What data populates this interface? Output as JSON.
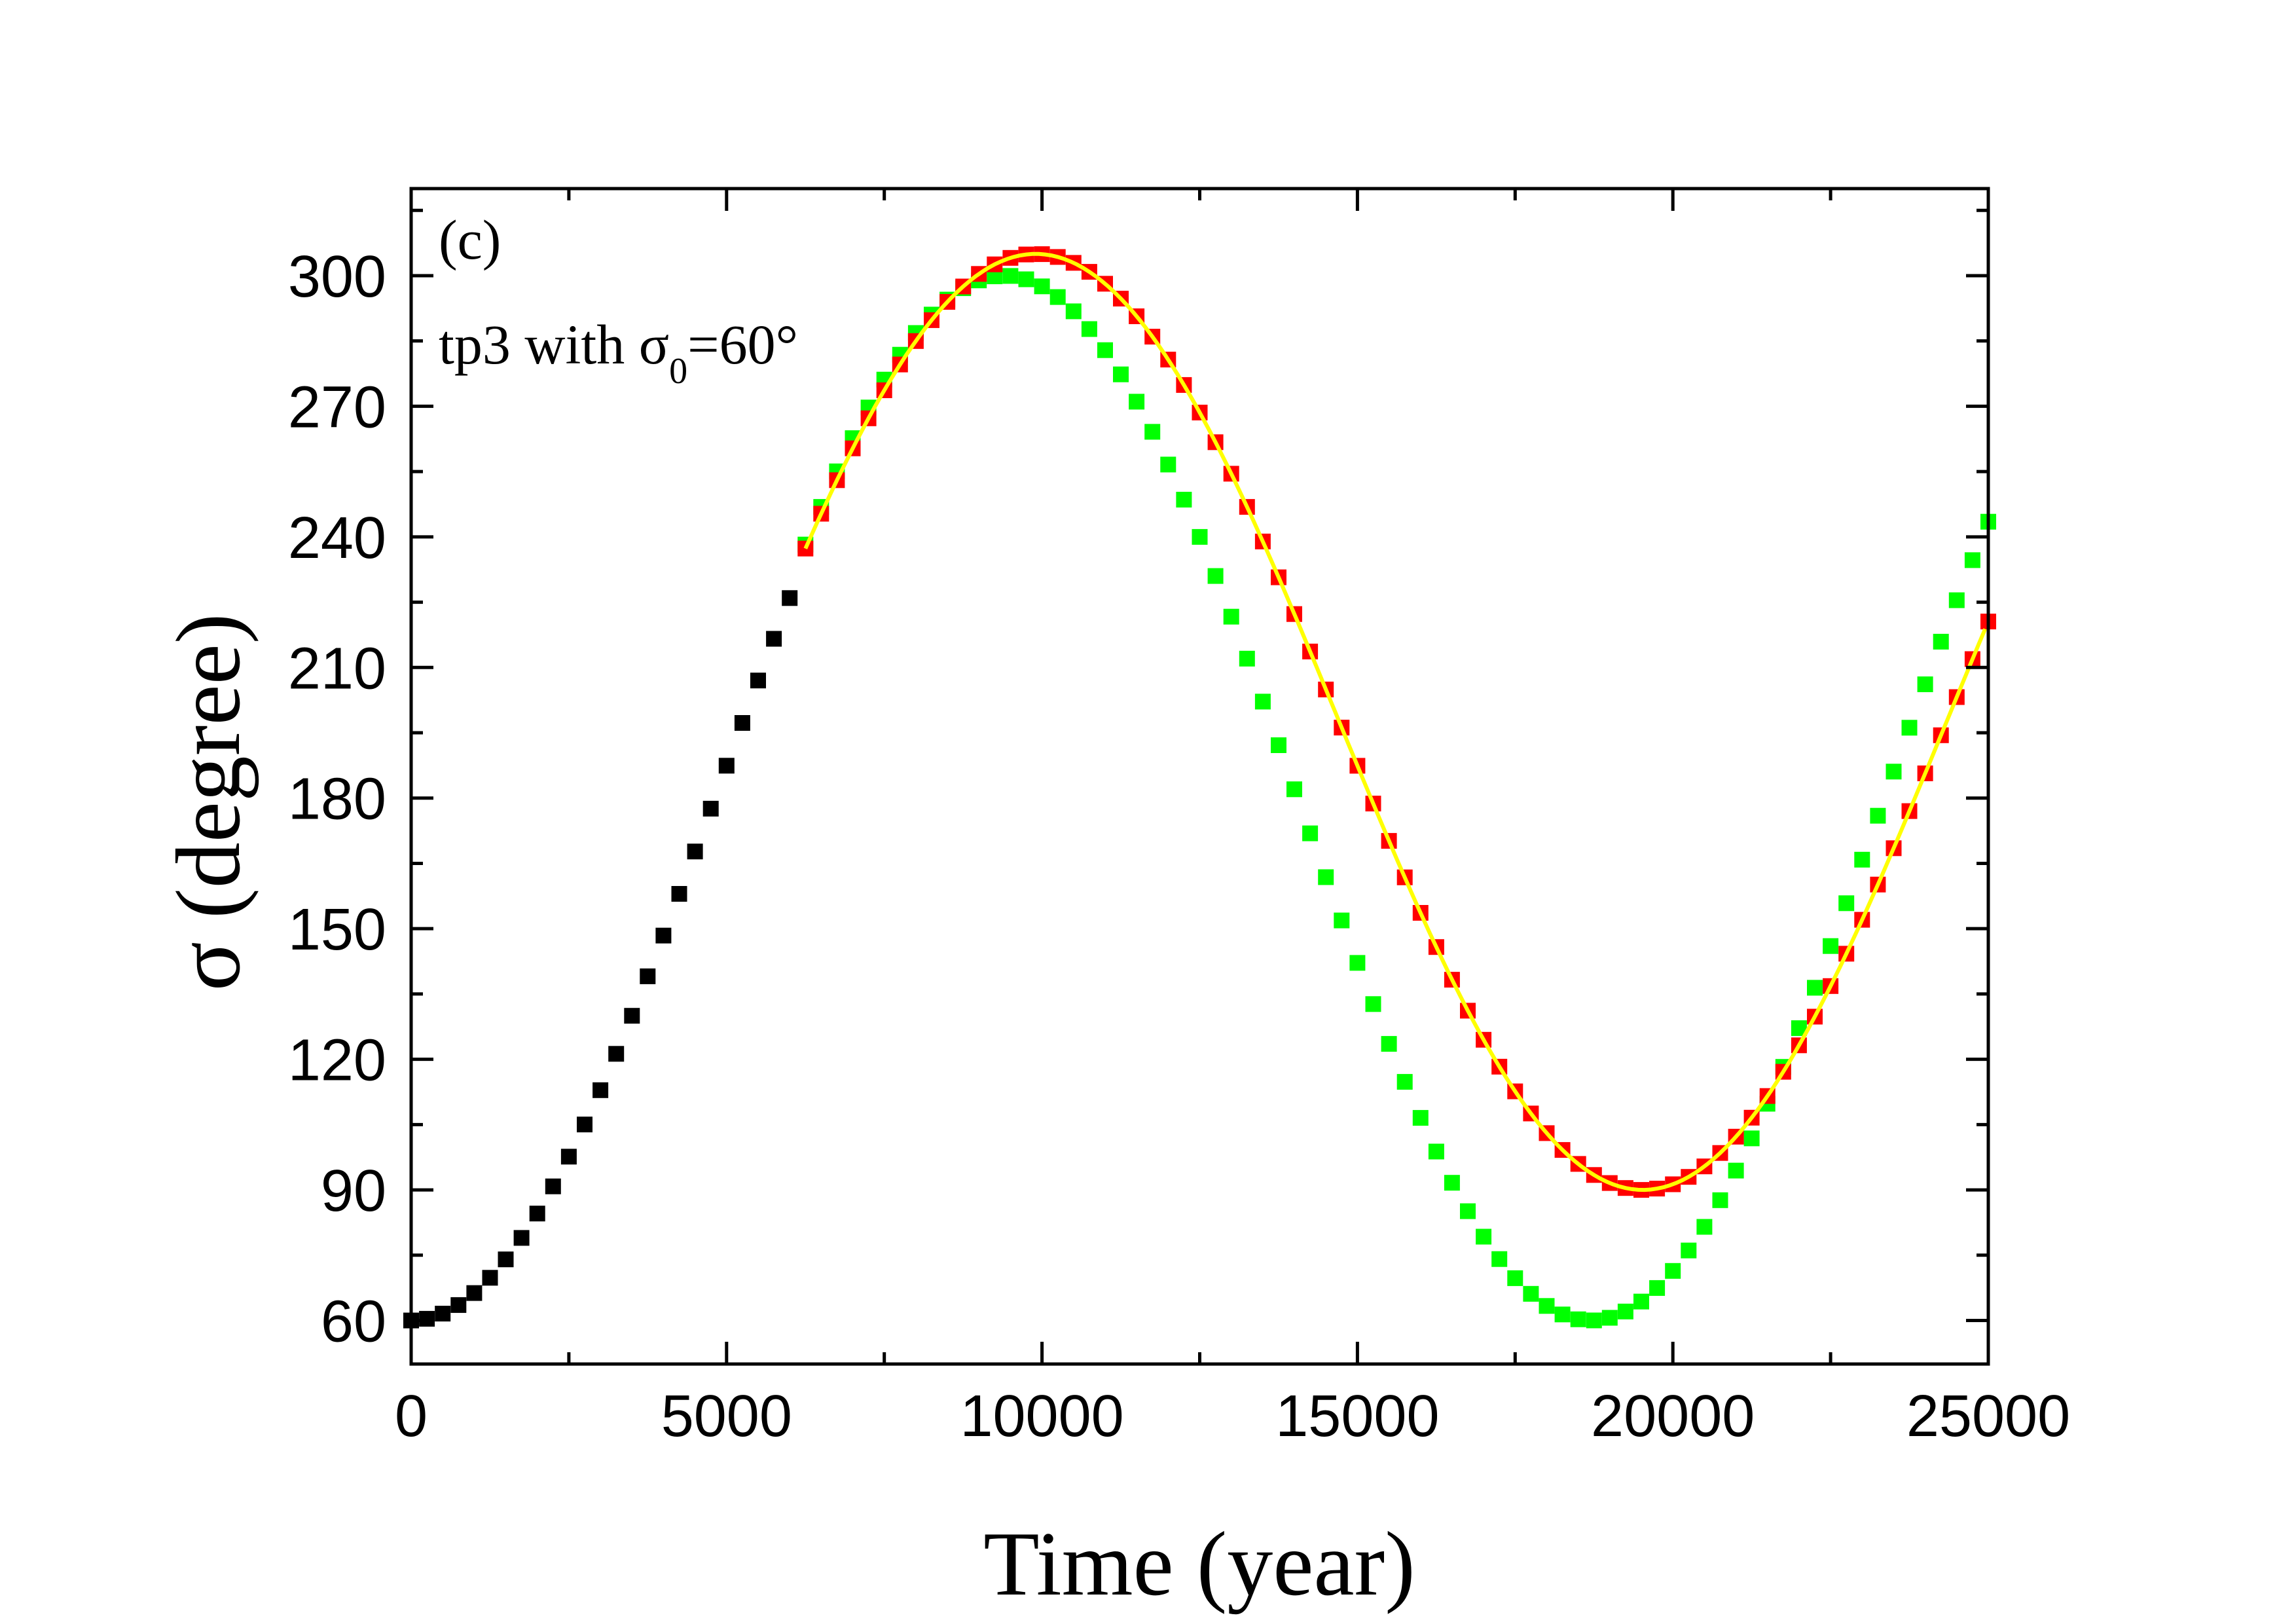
{
  "chart_data": {
    "type": "scatter",
    "xlabel": "Time (year)",
    "ylabel": "σ (degree)",
    "xlim": [
      0,
      25000
    ],
    "ylim": [
      50,
      320
    ],
    "xticks": [
      0,
      5000,
      10000,
      15000,
      20000,
      25000
    ],
    "yticks": [
      60,
      90,
      120,
      150,
      180,
      210,
      240,
      270,
      300
    ],
    "x_minor_step": 2500,
    "y_minor_step": 15,
    "panel_label": "(c)",
    "annotation": {
      "prefix": "tp3 with σ",
      "subscript": "0",
      "suffix": "=60°"
    },
    "colors": {
      "early": "#000000",
      "red": "#ff0000",
      "green": "#00ff00",
      "fit": "#ffff00"
    },
    "series": [
      {
        "name": "early",
        "type": "scatter",
        "color": "#000000",
        "x_start": 0,
        "x_end": 6000,
        "x_step": 250,
        "model": {
          "center": 182.5,
          "amplitude": 122.5,
          "period": 19500,
          "peak_time": 9750
        }
      },
      {
        "name": "red",
        "type": "scatter",
        "color": "#ff0000",
        "x_start": 6250,
        "x_end": 25000,
        "x_step": 250,
        "model": {
          "center": 197.5,
          "amplitude": 107.5,
          "period": 19250,
          "peak_time": 9900
        }
      },
      {
        "name": "green",
        "type": "scatter",
        "color": "#00ff00",
        "x_start": 6250,
        "x_end": 25000,
        "x_step": 250,
        "model": {
          "center": 180,
          "amplitude": 120,
          "period": 18600,
          "peak_time": 9400
        }
      },
      {
        "name": "fit",
        "type": "line",
        "color": "#ffff00",
        "x_start": 6250,
        "x_end": 25000,
        "x_step": 100,
        "model": {
          "center": 197.5,
          "amplitude": 107.5,
          "period": 19250,
          "peak_time": 9900
        }
      }
    ]
  }
}
